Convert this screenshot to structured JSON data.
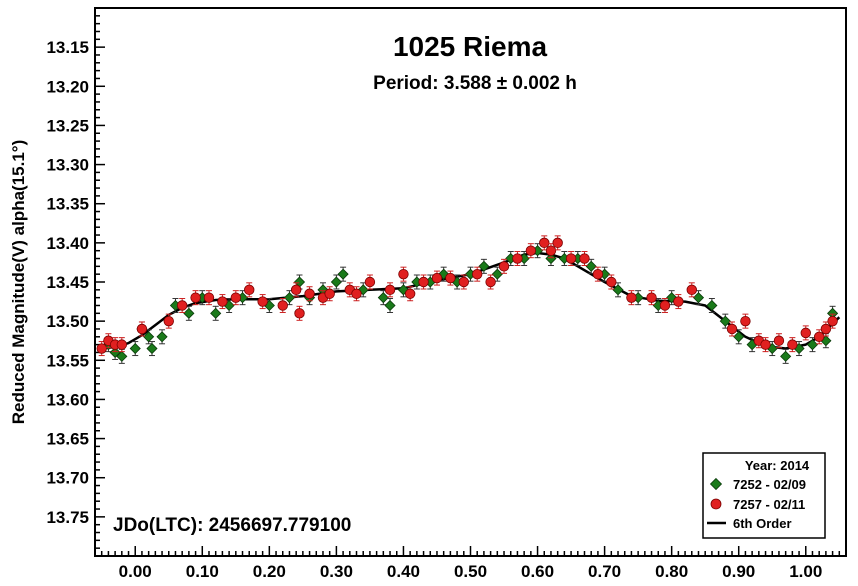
{
  "chart_data": {
    "type": "scatter",
    "title": "1025 Riema",
    "subtitle": "Period: 3.588 ± 0.002 h",
    "xlabel": "",
    "ylabel": "Reduced Magnitude(V) alpha(15.1°)",
    "annotation": "JDo(LTC): 2456697.779100",
    "xlim": [
      -0.06,
      1.06
    ],
    "ylim": [
      13.8,
      13.1
    ],
    "y_inverted": true,
    "x_ticks": [
      "0.00",
      "0.10",
      "0.20",
      "0.30",
      "0.40",
      "0.50",
      "0.60",
      "0.70",
      "0.80",
      "0.90",
      "1.00"
    ],
    "y_ticks": [
      "13.15",
      "13.20",
      "13.25",
      "13.30",
      "13.35",
      "13.40",
      "13.45",
      "13.50",
      "13.55",
      "13.60",
      "13.65",
      "13.70",
      "13.75"
    ],
    "grid": false,
    "legend": {
      "placement": "bottom-right",
      "title": "Year: 2014",
      "entries": [
        "7252 - 02/09",
        "7257 - 02/11",
        "6th Order"
      ]
    },
    "series": [
      {
        "name": "7252 - 02/09",
        "marker": "diamond",
        "color": "#1a7a1a",
        "x": [
          -0.04,
          -0.03,
          -0.02,
          0.0,
          0.01,
          0.02,
          0.025,
          0.04,
          0.06,
          0.08,
          0.1,
          0.12,
          0.14,
          0.16,
          0.2,
          0.23,
          0.245,
          0.26,
          0.28,
          0.3,
          0.31,
          0.34,
          0.37,
          0.38,
          0.4,
          0.42,
          0.44,
          0.46,
          0.48,
          0.5,
          0.52,
          0.54,
          0.56,
          0.58,
          0.6,
          0.62,
          0.64,
          0.66,
          0.68,
          0.7,
          0.72,
          0.75,
          0.78,
          0.8,
          0.84,
          0.86,
          0.88,
          0.9,
          0.92,
          0.95,
          0.97,
          0.99,
          1.01,
          1.03,
          1.04
        ],
        "y": [
          13.53,
          13.54,
          13.545,
          13.535,
          13.51,
          13.52,
          13.535,
          13.52,
          13.48,
          13.49,
          13.47,
          13.49,
          13.48,
          13.47,
          13.48,
          13.47,
          13.45,
          13.47,
          13.46,
          13.45,
          13.44,
          13.46,
          13.47,
          13.48,
          13.46,
          13.45,
          13.45,
          13.44,
          13.45,
          13.44,
          13.43,
          13.44,
          13.42,
          13.42,
          13.41,
          13.42,
          13.42,
          13.42,
          13.43,
          13.44,
          13.46,
          13.47,
          13.48,
          13.47,
          13.47,
          13.48,
          13.5,
          13.52,
          13.53,
          13.535,
          13.545,
          13.535,
          13.53,
          13.525,
          13.49
        ]
      },
      {
        "name": "7257 - 02/11",
        "marker": "circle",
        "color": "#e02020",
        "x": [
          -0.05,
          -0.04,
          -0.03,
          -0.02,
          0.01,
          0.05,
          0.07,
          0.09,
          0.11,
          0.13,
          0.15,
          0.17,
          0.19,
          0.22,
          0.24,
          0.245,
          0.26,
          0.28,
          0.29,
          0.32,
          0.33,
          0.35,
          0.38,
          0.4,
          0.41,
          0.43,
          0.45,
          0.47,
          0.49,
          0.51,
          0.53,
          0.55,
          0.57,
          0.59,
          0.61,
          0.62,
          0.63,
          0.65,
          0.67,
          0.69,
          0.71,
          0.74,
          0.77,
          0.79,
          0.81,
          0.83,
          0.89,
          0.91,
          0.93,
          0.94,
          0.96,
          0.98,
          1.0,
          1.02,
          1.03,
          1.04
        ],
        "y": [
          13.535,
          13.525,
          13.53,
          13.53,
          13.51,
          13.5,
          13.48,
          13.47,
          13.47,
          13.475,
          13.47,
          13.46,
          13.475,
          13.48,
          13.46,
          13.49,
          13.465,
          13.47,
          13.465,
          13.46,
          13.465,
          13.45,
          13.46,
          13.44,
          13.465,
          13.45,
          13.445,
          13.445,
          13.45,
          13.44,
          13.45,
          13.43,
          13.42,
          13.41,
          13.4,
          13.41,
          13.4,
          13.42,
          13.42,
          13.44,
          13.45,
          13.47,
          13.47,
          13.48,
          13.475,
          13.46,
          13.51,
          13.5,
          13.525,
          13.53,
          13.525,
          13.53,
          13.515,
          13.52,
          13.51,
          13.5
        ]
      },
      {
        "name": "6th Order",
        "type": "line",
        "color": "#000000",
        "x": [
          -0.05,
          -0.03,
          -0.01,
          0.01,
          0.03,
          0.05,
          0.07,
          0.09,
          0.12,
          0.15,
          0.2,
          0.25,
          0.3,
          0.35,
          0.4,
          0.45,
          0.5,
          0.55,
          0.58,
          0.6,
          0.62,
          0.64,
          0.66,
          0.7,
          0.74,
          0.78,
          0.82,
          0.85,
          0.88,
          0.91,
          0.94,
          0.97,
          1.0,
          1.02,
          1.05
        ],
        "y": [
          13.535,
          13.533,
          13.528,
          13.518,
          13.505,
          13.492,
          13.483,
          13.477,
          13.473,
          13.472,
          13.472,
          13.468,
          13.462,
          13.46,
          13.458,
          13.448,
          13.44,
          13.425,
          13.415,
          13.413,
          13.415,
          13.42,
          13.43,
          13.45,
          13.468,
          13.474,
          13.475,
          13.48,
          13.5,
          13.52,
          13.532,
          13.535,
          13.53,
          13.52,
          13.495
        ]
      }
    ]
  }
}
